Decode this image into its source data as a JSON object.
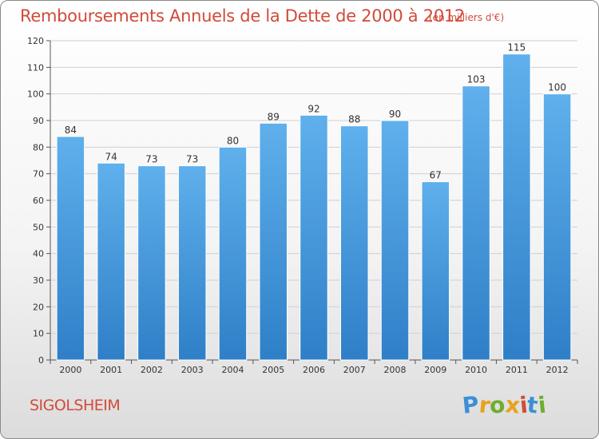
{
  "chart_data": {
    "type": "bar",
    "title": "Remboursements Annuels de la Dette de 2000 à 2012",
    "unit_note": "(en milliers d'€)",
    "categories": [
      "2000",
      "2001",
      "2002",
      "2003",
      "2004",
      "2005",
      "2006",
      "2007",
      "2008",
      "2009",
      "2010",
      "2011",
      "2012"
    ],
    "values": [
      84,
      74,
      73,
      73,
      80,
      89,
      92,
      88,
      90,
      67,
      103,
      115,
      100
    ],
    "ylim": [
      0,
      120
    ],
    "yticks": [
      0,
      10,
      20,
      30,
      40,
      50,
      60,
      70,
      80,
      90,
      100,
      110,
      120
    ],
    "xlabel": "",
    "ylabel": "",
    "grid": true,
    "bar_color": "#3b8fd4"
  },
  "footer": {
    "city": "SIGOLSHEIM",
    "logo_letters": [
      "P",
      "r",
      "o",
      "x",
      "i",
      "t",
      "i"
    ],
    "logo_colors": [
      "#3b8fd4",
      "#e8a21c",
      "#6dae2e",
      "#e8a21c",
      "#d24a3a",
      "#3b8fd4",
      "#6dae2e"
    ]
  }
}
